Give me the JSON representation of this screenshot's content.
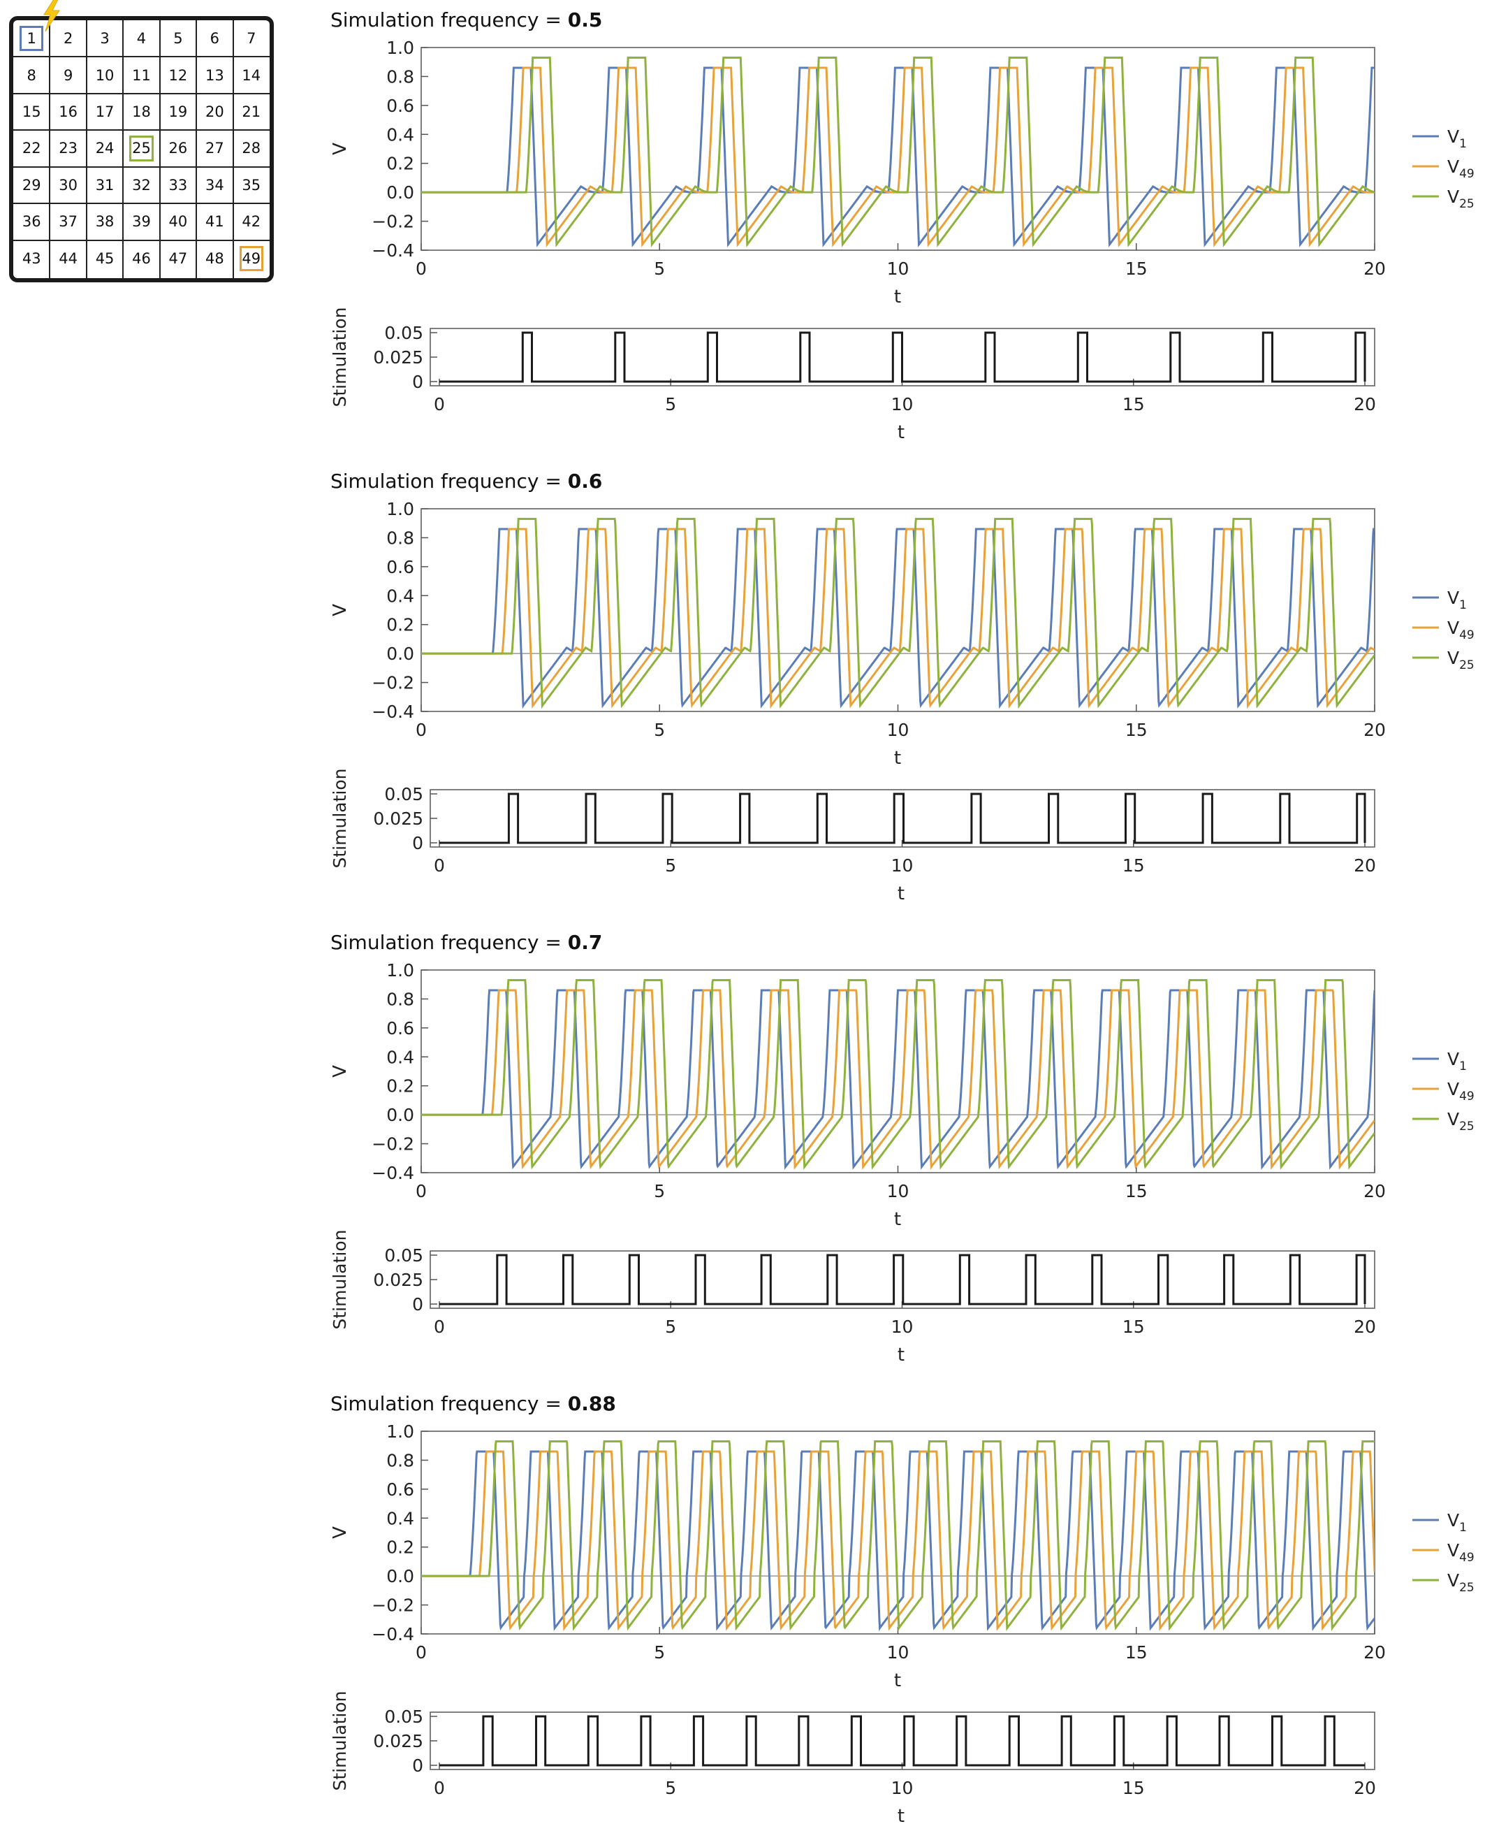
{
  "grid": {
    "cells": [
      "1",
      "2",
      "3",
      "4",
      "5",
      "6",
      "7",
      "8",
      "9",
      "10",
      "11",
      "12",
      "13",
      "14",
      "15",
      "16",
      "17",
      "18",
      "19",
      "20",
      "21",
      "22",
      "23",
      "24",
      "25",
      "26",
      "27",
      "28",
      "29",
      "30",
      "31",
      "32",
      "33",
      "34",
      "35",
      "36",
      "37",
      "38",
      "39",
      "40",
      "41",
      "42",
      "43",
      "44",
      "45",
      "46",
      "47",
      "48",
      "49"
    ],
    "highlights": [
      {
        "cell": "1",
        "color": "#5b7db7"
      },
      {
        "cell": "25",
        "color": "#8fb23c"
      },
      {
        "cell": "49",
        "color": "#e3a232"
      }
    ],
    "stimulus_icon": "lightning-bolt-icon"
  },
  "colors": {
    "V1": "#5b7db7",
    "V49": "#e8a23a",
    "V25": "#8fb23c",
    "stim": "#1a1a1a"
  },
  "chart_data": [
    {
      "type": "line",
      "title_prefix": "Simulation frequency = ",
      "title_value": "0.5",
      "freq": 0.5,
      "xlabel": "t",
      "ylabel": "V",
      "xlim": [
        0,
        20
      ],
      "ylim": [
        -0.4,
        1.0
      ],
      "xticks": [
        "0",
        "5",
        "10",
        "15",
        "20"
      ],
      "yticks": [
        "1.0",
        "0.8",
        "0.6",
        "0.4",
        "0.2",
        "0.0",
        "−0.2",
        "−0.4"
      ],
      "legend": [
        {
          "name": "V",
          "sub": "1",
          "key": "V1"
        },
        {
          "name": "V",
          "sub": "49",
          "key": "V49"
        },
        {
          "name": "V",
          "sub": "25",
          "key": "V25"
        }
      ],
      "legend_position": "right",
      "grid": false
    },
    {
      "type": "line",
      "title_prefix": "Simulation frequency = ",
      "title_value": "0.6",
      "freq": 0.6,
      "xlabel": "t",
      "ylabel": "V",
      "xlim": [
        0,
        20
      ],
      "ylim": [
        -0.4,
        1.0
      ],
      "xticks": [
        "0",
        "5",
        "10",
        "15",
        "20"
      ],
      "yticks": [
        "1.0",
        "0.8",
        "0.6",
        "0.4",
        "0.2",
        "0.0",
        "−0.2",
        "−0.4"
      ],
      "legend": [
        {
          "name": "V",
          "sub": "1",
          "key": "V1"
        },
        {
          "name": "V",
          "sub": "49",
          "key": "V49"
        },
        {
          "name": "V",
          "sub": "25",
          "key": "V25"
        }
      ],
      "legend_position": "right",
      "grid": false
    },
    {
      "type": "line",
      "title_prefix": "Simulation frequency = ",
      "title_value": "0.7",
      "freq": 0.7,
      "xlabel": "t",
      "ylabel": "V",
      "xlim": [
        0,
        20
      ],
      "ylim": [
        -0.4,
        1.0
      ],
      "xticks": [
        "0",
        "5",
        "10",
        "15",
        "20"
      ],
      "yticks": [
        "1.0",
        "0.8",
        "0.6",
        "0.4",
        "0.2",
        "0.0",
        "−0.2",
        "−0.4"
      ],
      "legend": [
        {
          "name": "V",
          "sub": "1",
          "key": "V1"
        },
        {
          "name": "V",
          "sub": "49",
          "key": "V49"
        },
        {
          "name": "V",
          "sub": "25",
          "key": "V25"
        }
      ],
      "legend_position": "right",
      "grid": false
    },
    {
      "type": "line",
      "title_prefix": "Simulation frequency = ",
      "title_value": "0.88",
      "freq": 0.88,
      "xlabel": "t",
      "ylabel": "V",
      "xlim": [
        0,
        20
      ],
      "ylim": [
        -0.4,
        1.0
      ],
      "xticks": [
        "0",
        "5",
        "10",
        "15",
        "20"
      ],
      "yticks": [
        "1.0",
        "0.8",
        "0.6",
        "0.4",
        "0.2",
        "0.0",
        "−0.2",
        "−0.4"
      ],
      "legend": [
        {
          "name": "V",
          "sub": "1",
          "key": "V1"
        },
        {
          "name": "V",
          "sub": "49",
          "key": "V49"
        },
        {
          "name": "V",
          "sub": "25",
          "key": "V25"
        }
      ],
      "legend_position": "right",
      "grid": false
    }
  ],
  "stim_data": [
    {
      "type": "line",
      "xlabel": "t",
      "ylabel": "Stimulation",
      "xlim": [
        0,
        20
      ],
      "ylim": [
        0,
        0.05
      ],
      "xticks": [
        "0",
        "5",
        "10",
        "15",
        "20"
      ],
      "yticks": [
        "0.05",
        "0.025",
        "0"
      ],
      "pulse_height": 0.05,
      "pulse_starts": [
        1.8,
        3.8,
        5.8,
        7.8,
        9.8,
        11.8,
        13.8,
        15.8,
        17.8,
        19.8
      ]
    },
    {
      "type": "line",
      "xlabel": "t",
      "ylabel": "Stimulation",
      "xlim": [
        0,
        20
      ],
      "ylim": [
        0,
        0.05
      ],
      "xticks": [
        "0",
        "5",
        "10",
        "15",
        "20"
      ],
      "yticks": [
        "0.05",
        "0.025",
        "0"
      ],
      "pulse_height": 0.05,
      "pulse_starts": [
        1.5,
        3.17,
        4.83,
        6.5,
        8.17,
        9.83,
        11.5,
        13.17,
        14.83,
        16.5,
        18.17,
        19.83
      ]
    },
    {
      "type": "line",
      "xlabel": "t",
      "ylabel": "Stimulation",
      "xlim": [
        0,
        20
      ],
      "ylim": [
        0,
        0.05
      ],
      "xticks": [
        "0",
        "5",
        "10",
        "15",
        "20"
      ],
      "yticks": [
        "0.05",
        "0.025",
        "0"
      ],
      "pulse_height": 0.05,
      "pulse_starts": [
        1.25,
        2.68,
        4.11,
        5.54,
        6.96,
        8.39,
        9.82,
        11.25,
        12.68,
        14.11,
        15.54,
        16.96,
        18.39,
        19.82
      ]
    },
    {
      "type": "line",
      "xlabel": "t",
      "ylabel": "Stimulation",
      "xlim": [
        0,
        20
      ],
      "ylim": [
        0,
        0.05
      ],
      "xticks": [
        "0",
        "5",
        "10",
        "15",
        "20"
      ],
      "yticks": [
        "0.05",
        "0.025",
        "0"
      ],
      "pulse_height": 0.05,
      "pulse_starts": [
        0.95,
        2.09,
        3.22,
        4.36,
        5.5,
        6.64,
        7.77,
        8.91,
        10.05,
        11.18,
        12.32,
        13.45,
        14.59,
        15.73,
        16.86,
        18.0,
        19.14
      ]
    }
  ]
}
